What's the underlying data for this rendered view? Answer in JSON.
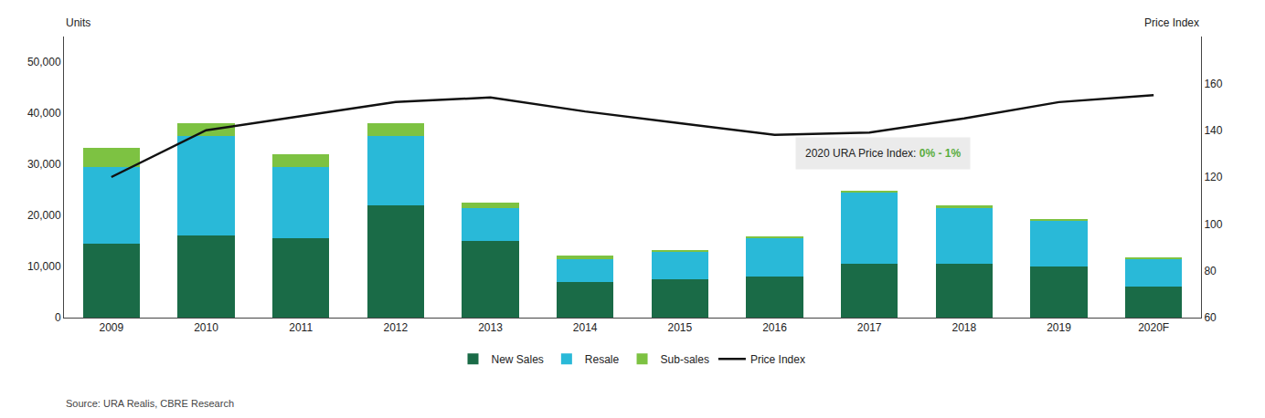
{
  "chart_data": {
    "type": "bar",
    "stacked": true,
    "categories": [
      "2009",
      "2010",
      "2011",
      "2012",
      "2013",
      "2014",
      "2015",
      "2016",
      "2017",
      "2018",
      "2019",
      "2020F"
    ],
    "series": [
      {
        "name": "New Sales",
        "color": "#1a6b47",
        "values": [
          14500,
          16000,
          15500,
          22000,
          15000,
          7000,
          7500,
          8000,
          10500,
          10500,
          10000,
          6000
        ]
      },
      {
        "name": "Resale",
        "color": "#29b9d8",
        "values": [
          15000,
          19500,
          14000,
          13500,
          6500,
          4500,
          5500,
          7500,
          14000,
          11000,
          9000,
          5500
        ]
      },
      {
        "name": "Sub-sales",
        "color": "#7dc242",
        "values": [
          3800,
          2500,
          2500,
          2500,
          1000,
          600,
          300,
          400,
          400,
          400,
          300,
          200
        ]
      },
      {
        "name": "Price Index",
        "type": "line",
        "axis": "y2",
        "color": "#111111",
        "line_style": "solid",
        "values": [
          120,
          140,
          146,
          152,
          154,
          148,
          143,
          138,
          139,
          145,
          152,
          155
        ]
      }
    ],
    "ylabel": "Units",
    "y2label": "Price Index",
    "ylim": [
      0,
      55000
    ],
    "yticks": [
      0,
      {
        "value": 10000,
        "label": "10,000"
      },
      {
        "value": 20000,
        "label": "20,000"
      },
      {
        "value": 30000,
        "label": "30,000"
      },
      {
        "value": 40000,
        "label": "40,000"
      },
      {
        "value": 50000,
        "label": "50,000"
      }
    ],
    "y2lim": [
      60,
      180
    ],
    "y2ticks": [
      60,
      80,
      100,
      120,
      140,
      160
    ],
    "grid": false,
    "legend": "bottom",
    "annotations": [
      {
        "text": "2020 URA Price Index: ",
        "highlight": "0% - 1%",
        "highlight_color": "#5aad3f",
        "background": "#ebebeb"
      }
    ],
    "source": "Source: URA Realis, CBRE Research"
  }
}
